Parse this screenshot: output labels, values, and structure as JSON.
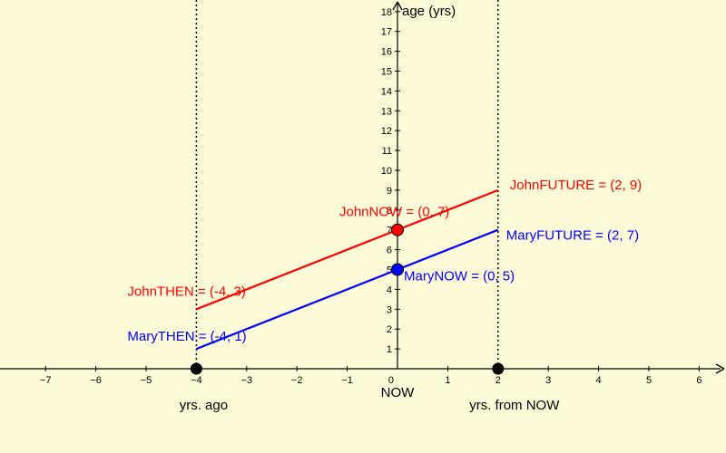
{
  "colors": {
    "background": "#fefbd9",
    "john": "#ff0000",
    "mary": "#0000ff",
    "axis": "#000000",
    "marker": "#000000"
  },
  "chart_data": {
    "type": "line",
    "xlim": [
      -8,
      6.5
    ],
    "ylim": [
      0,
      18.6
    ],
    "x_ticks": [
      -7,
      -6,
      -5,
      -4,
      -3,
      -2,
      -1,
      0,
      1,
      2,
      3,
      4,
      5,
      6
    ],
    "y_ticks": [
      1,
      2,
      3,
      4,
      5,
      6,
      7,
      8,
      9,
      10,
      11,
      12,
      13,
      14,
      15,
      16,
      17,
      18
    ],
    "ylabel": "age (yrs)",
    "x_annotations": {
      "zero": "NOW",
      "past": "yrs. ago",
      "future": "yrs. from NOW"
    },
    "reference_lines_x": [
      -4,
      2
    ],
    "axis_markers": [
      [
        -4,
        0
      ],
      [
        2,
        0
      ]
    ],
    "series": [
      {
        "id": "john",
        "points": [
          {
            "x": -4,
            "y": 3,
            "label": "JohnTHEN = (-4, 3)"
          },
          {
            "x": 0,
            "y": 7,
            "label": "JohnNOW = (0, 7)"
          },
          {
            "x": 2,
            "y": 9,
            "label": "JohnFUTURE = (2, 9)"
          }
        ]
      },
      {
        "id": "mary",
        "points": [
          {
            "x": -4,
            "y": 1,
            "label": "MaryTHEN = (-4, 1)"
          },
          {
            "x": 0,
            "y": 5,
            "label": "MaryNOW = (0, 5)"
          },
          {
            "x": 2,
            "y": 7,
            "label": "MaryFUTURE = (2, 7)"
          }
        ]
      }
    ]
  }
}
